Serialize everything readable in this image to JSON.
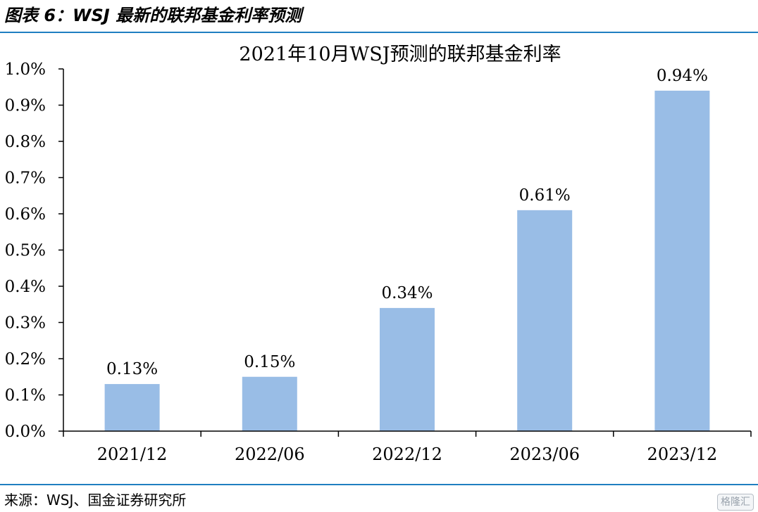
{
  "figure": {
    "caption": "图表 6：WSJ 最新的联邦基金利率预测",
    "source": "来源：WSJ、国金证券研究所",
    "watermark": "格隆汇"
  },
  "chart_data": {
    "type": "bar",
    "title": "2021年10月WSJ预测的联邦基金利率",
    "categories": [
      "2021/12",
      "2022/06",
      "2022/12",
      "2023/06",
      "2023/12"
    ],
    "values": [
      0.13,
      0.15,
      0.34,
      0.61,
      0.94
    ],
    "data_labels": [
      "0.13%",
      "0.15%",
      "0.34%",
      "0.61%",
      "0.94%"
    ],
    "y_ticks": [
      "0.0%",
      "0.1%",
      "0.2%",
      "0.3%",
      "0.4%",
      "0.5%",
      "0.6%",
      "0.7%",
      "0.8%",
      "0.9%",
      "1.0%"
    ],
    "ylim": [
      0,
      1.0
    ],
    "y_unit": "%",
    "xlabel": "",
    "ylabel": "",
    "grid": false,
    "legend": "none",
    "bar_color": "#99bde6"
  }
}
